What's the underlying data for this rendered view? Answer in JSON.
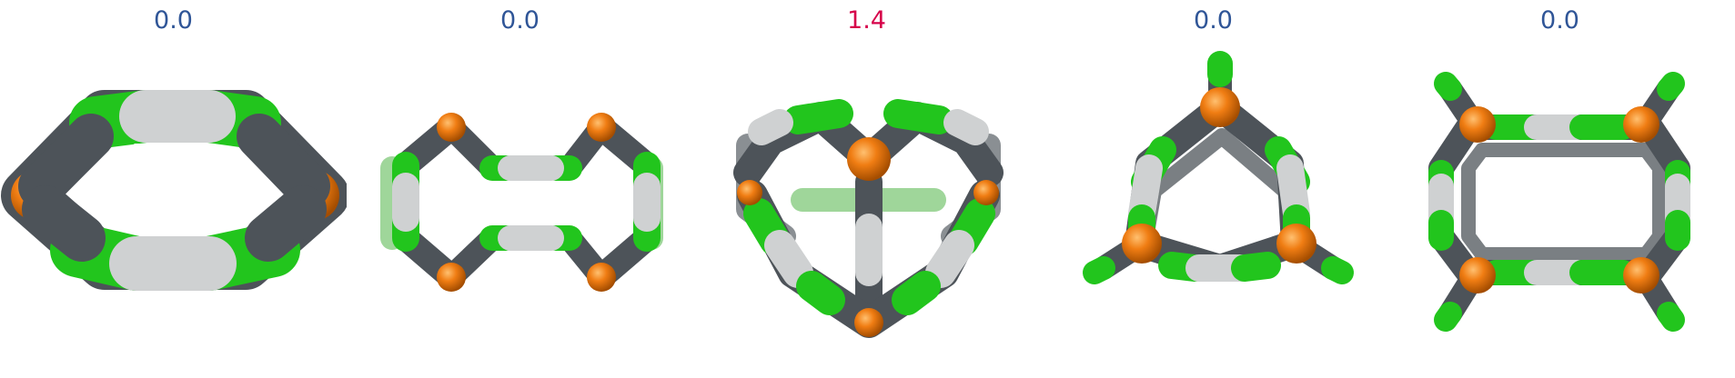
{
  "panels": [
    {
      "label": "0.0",
      "label_color": "#2f5597",
      "structure": "flat-hexagonal-cage"
    },
    {
      "label": "0.0",
      "label_color": "#2f5597",
      "structure": "dumbbell-cage"
    },
    {
      "label": "1.4",
      "label_color": "#d6004a",
      "structure": "tetrahedral-heart-cage"
    },
    {
      "label": "0.0",
      "label_color": "#2f5597",
      "structure": "triangular-cage"
    },
    {
      "label": "0.0",
      "label_color": "#2f5597",
      "structure": "square-cage"
    }
  ],
  "colors": {
    "linker_green": "#22c51d",
    "linker_white": "#cfd1d2",
    "carbon_gray": "#4d5359",
    "metal_orange": "#f07d13"
  }
}
